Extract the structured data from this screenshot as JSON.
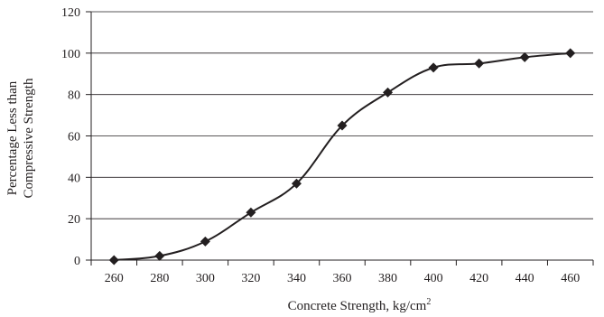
{
  "chart_data": {
    "type": "line",
    "title": "",
    "xlabel": "Concrete Strength, kg/cm",
    "xlabel_superscript": "2",
    "ylabel_lines": [
      "Percentage Less than",
      "Compressive Strength"
    ],
    "x_ticks": [
      "260",
      "280",
      "300",
      "320",
      "340",
      "360",
      "380",
      "400",
      "420",
      "440",
      "460"
    ],
    "y_ticks": [
      "0",
      "20",
      "40",
      "60",
      "80",
      "100",
      "120"
    ],
    "xlim": [
      250,
      470
    ],
    "ylim": [
      0,
      120
    ],
    "grid": "horizontal",
    "legend": "none",
    "line_style": "smooth",
    "marker": "diamond",
    "color": "#231f20",
    "series": [
      {
        "x": [
          260,
          280,
          300,
          320,
          340,
          360,
          380,
          400,
          420,
          440,
          460
        ],
        "y": [
          0,
          2,
          9,
          23,
          37,
          65,
          81,
          93,
          95,
          98,
          100
        ]
      }
    ]
  }
}
